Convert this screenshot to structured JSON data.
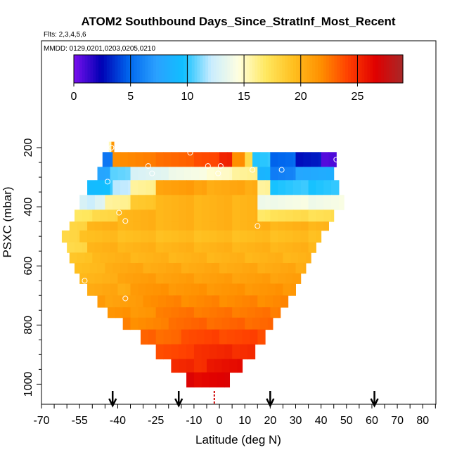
{
  "chart_data": {
    "type": "heatmap",
    "title": "ATOM2 Southbound Days_Since_StratInf_Most_Recent",
    "subtitle_flights": "Flts: 2,3,4,5,6",
    "subtitle_dates": "MMDD: 0129,0201,0203,0205,0210",
    "xlabel": "Latitude (deg N)",
    "ylabel": "PSXC (mbar)",
    "xlim": [
      -70,
      85
    ],
    "ylim": [
      1010,
      130
    ],
    "x_ticks": [
      {
        "value": -70,
        "label": "-70"
      },
      {
        "value": -55,
        "label": "-55"
      },
      {
        "value": -40,
        "label": "-40"
      },
      {
        "value": -25,
        "label": "-25"
      },
      {
        "value": -10,
        "label": "-10"
      },
      {
        "value": 0,
        "label": "0"
      },
      {
        "value": 10,
        "label": "10"
      },
      {
        "value": 20,
        "label": "20"
      },
      {
        "value": 30,
        "label": "30"
      },
      {
        "value": 40,
        "label": "40"
      },
      {
        "value": 50,
        "label": "50"
      },
      {
        "value": 60,
        "label": "60"
      },
      {
        "value": 70,
        "label": "70"
      },
      {
        "value": 80,
        "label": "80"
      }
    ],
    "y_ticks": [
      {
        "value": 200,
        "label": "200"
      },
      {
        "value": 400,
        "label": "400"
      },
      {
        "value": 600,
        "label": "600"
      },
      {
        "value": 800,
        "label": "800"
      },
      {
        "value": 1000,
        "label": "1000"
      }
    ],
    "colorbar": {
      "min": 0,
      "max": 29,
      "ticks": [
        {
          "value": 0,
          "label": "0"
        },
        {
          "value": 5,
          "label": "5"
        },
        {
          "value": 10,
          "label": "10"
        },
        {
          "value": 15,
          "label": "15"
        },
        {
          "value": 20,
          "label": "20"
        },
        {
          "value": 25,
          "label": "25"
        }
      ],
      "colors": [
        "#7a10ee",
        "#0000b4",
        "#0066ee",
        "#2aa0ff",
        "#10c0ff",
        "#c8ecff",
        "#ffffe0",
        "#ffe860",
        "#ffc020",
        "#ff9000",
        "#ff4000",
        "#e00000",
        "#a82828"
      ]
    },
    "rows": [
      {
        "p_top": 180,
        "p_bot": 215,
        "segments": [
          [
            -43.5,
            -42.5,
            16
          ],
          [
            -42.5,
            -41.5,
            22
          ]
        ]
      },
      {
        "p_top": 215,
        "p_bot": 265,
        "segments": [
          [
            -46,
            -42,
            6
          ],
          [
            -42,
            -25,
            22.5
          ],
          [
            -25,
            -10,
            23
          ],
          [
            -10,
            0,
            24
          ],
          [
            0,
            5,
            25.5
          ],
          [
            5,
            10,
            22
          ],
          [
            10,
            13,
            18
          ],
          [
            13,
            20,
            10
          ],
          [
            20,
            30,
            5
          ],
          [
            30,
            40,
            3
          ],
          [
            40,
            46,
            1
          ]
        ]
      },
      {
        "p_top": 265,
        "p_bot": 310,
        "segments": [
          [
            -48,
            -43,
            8
          ],
          [
            -43,
            -35,
            11
          ],
          [
            -35,
            -20,
            13
          ],
          [
            -20,
            -5,
            14
          ],
          [
            -5,
            5,
            15
          ],
          [
            5,
            15,
            16
          ],
          [
            15,
            20,
            9
          ],
          [
            20,
            30,
            6
          ],
          [
            30,
            45,
            8
          ]
        ]
      },
      {
        "p_top": 310,
        "p_bot": 360,
        "segments": [
          [
            -52,
            -42,
            10
          ],
          [
            -42,
            -35,
            12
          ],
          [
            -35,
            -25,
            16
          ],
          [
            -25,
            -5,
            21
          ],
          [
            -5,
            15,
            20.5
          ],
          [
            15,
            20,
            16
          ],
          [
            20,
            47,
            10
          ]
        ]
      },
      {
        "p_top": 360,
        "p_bot": 410,
        "segments": [
          [
            -55,
            -45,
            13
          ],
          [
            -45,
            -35,
            16
          ],
          [
            -35,
            -25,
            19
          ],
          [
            -25,
            15,
            20
          ],
          [
            15,
            20,
            14
          ],
          [
            20,
            49,
            14
          ]
        ]
      },
      {
        "p_top": 410,
        "p_bot": 450,
        "segments": [
          [
            -57,
            -50,
            17
          ],
          [
            -50,
            -40,
            18
          ],
          [
            -40,
            15,
            20
          ],
          [
            15,
            20,
            17
          ],
          [
            20,
            45,
            17.5
          ]
        ]
      },
      {
        "p_top": 450,
        "p_bot": 480,
        "segments": [
          [
            -59,
            -52,
            18
          ],
          [
            -52,
            43,
            20
          ]
        ]
      },
      {
        "p_top": 480,
        "p_bot": 520,
        "segments": [
          [
            -62,
            -55,
            18
          ],
          [
            -55,
            40,
            19.5
          ]
        ]
      },
      {
        "p_top": 520,
        "p_bot": 555,
        "segments": [
          [
            -60,
            -52,
            18
          ],
          [
            -52,
            38,
            20
          ]
        ]
      },
      {
        "p_top": 555,
        "p_bot": 590,
        "segments": [
          [
            -59,
            -50,
            19
          ],
          [
            -50,
            36,
            20
          ]
        ]
      },
      {
        "p_top": 590,
        "p_bot": 625,
        "segments": [
          [
            -57,
            -45,
            19.5
          ],
          [
            -45,
            34,
            20.5
          ]
        ]
      },
      {
        "p_top": 625,
        "p_bot": 660,
        "segments": [
          [
            -55,
            -40,
            20
          ],
          [
            -40,
            32,
            21
          ]
        ]
      },
      {
        "p_top": 660,
        "p_bot": 700,
        "segments": [
          [
            -52,
            -35,
            20.5
          ],
          [
            -35,
            30,
            21.5
          ]
        ]
      },
      {
        "p_top": 700,
        "p_bot": 740,
        "segments": [
          [
            -48,
            -30,
            21
          ],
          [
            -30,
            27,
            22
          ]
        ]
      },
      {
        "p_top": 740,
        "p_bot": 775,
        "segments": [
          [
            -44,
            -25,
            21.5
          ],
          [
            -25,
            24,
            22.5
          ]
        ]
      },
      {
        "p_top": 775,
        "p_bot": 815,
        "segments": [
          [
            -38,
            -20,
            22
          ],
          [
            -20,
            21,
            23
          ]
        ]
      },
      {
        "p_top": 815,
        "p_bot": 865,
        "segments": [
          [
            -31,
            -15,
            23
          ],
          [
            -15,
            18,
            24
          ]
        ]
      },
      {
        "p_top": 865,
        "p_bot": 915,
        "segments": [
          [
            -25,
            -10,
            24
          ],
          [
            -10,
            14,
            25
          ]
        ]
      },
      {
        "p_top": 915,
        "p_bot": 960,
        "segments": [
          [
            -19,
            -5,
            25
          ],
          [
            -5,
            9,
            26
          ]
        ]
      },
      {
        "p_top": 960,
        "p_bot": 1010,
        "segments": [
          [
            -13,
            4,
            26.5
          ]
        ]
      }
    ],
    "circles": [
      {
        "lat": -42.5,
        "p": 200
      },
      {
        "lat": -11.5,
        "p": 217
      },
      {
        "lat": -28,
        "p": 262
      },
      {
        "lat": -4.5,
        "p": 262
      },
      {
        "lat": 0.5,
        "p": 262
      },
      {
        "lat": -26.5,
        "p": 287
      },
      {
        "lat": -0.5,
        "p": 287
      },
      {
        "lat": 13,
        "p": 275
      },
      {
        "lat": 24.5,
        "p": 275
      },
      {
        "lat": 46,
        "p": 240
      },
      {
        "lat": -44,
        "p": 315
      },
      {
        "lat": -39.5,
        "p": 420
      },
      {
        "lat": -37,
        "p": 448
      },
      {
        "lat": 15,
        "p": 465
      },
      {
        "lat": -53,
        "p": 650
      },
      {
        "lat": -37,
        "p": 710
      }
    ],
    "arrows": [
      -42,
      -16,
      20,
      61
    ],
    "dashed_marker_lat": -2
  }
}
